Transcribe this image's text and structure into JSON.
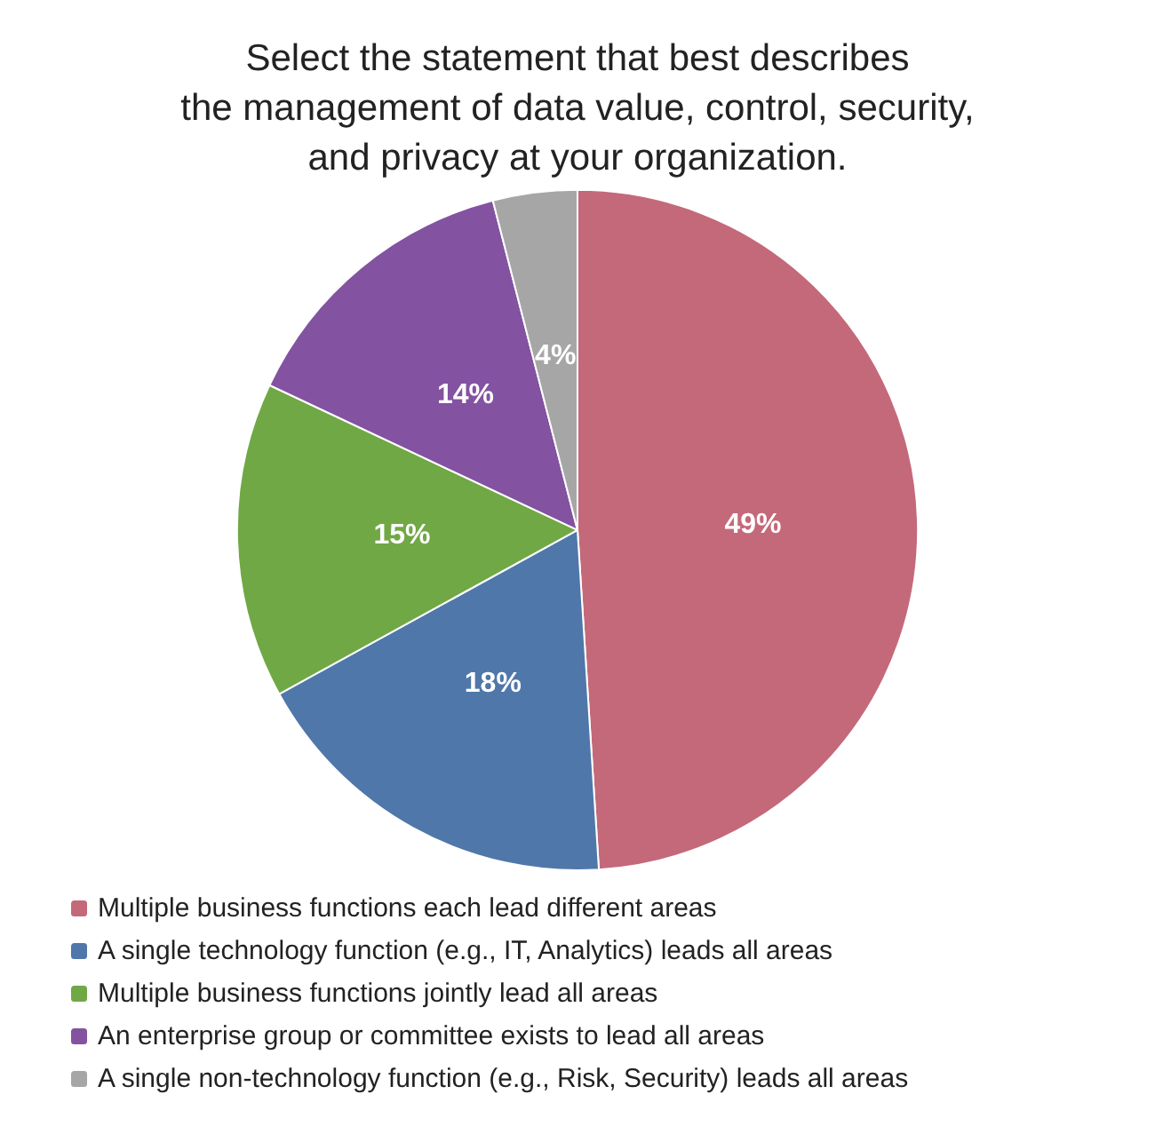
{
  "chart_data": {
    "type": "pie",
    "title": "Select the statement that best describes\nthe management of data value, control, security,\nand privacy at your organization.",
    "categories": [
      "Multiple business functions each lead different areas",
      "A single technology function (e.g., IT, Analytics) leads all areas",
      "Multiple business functions jointly lead all areas",
      "An enterprise group or committee exists to lead all areas",
      "A single non-technology function (e.g., Risk, Security) leads all areas"
    ],
    "values": [
      49,
      18,
      15,
      14,
      4
    ],
    "value_labels": [
      "49%",
      "18%",
      "15%",
      "14%",
      "4%"
    ],
    "colors": [
      "#c4697a",
      "#4f77aa",
      "#70a845",
      "#8352a1",
      "#a6a6a6"
    ],
    "legend": "bottom left"
  }
}
